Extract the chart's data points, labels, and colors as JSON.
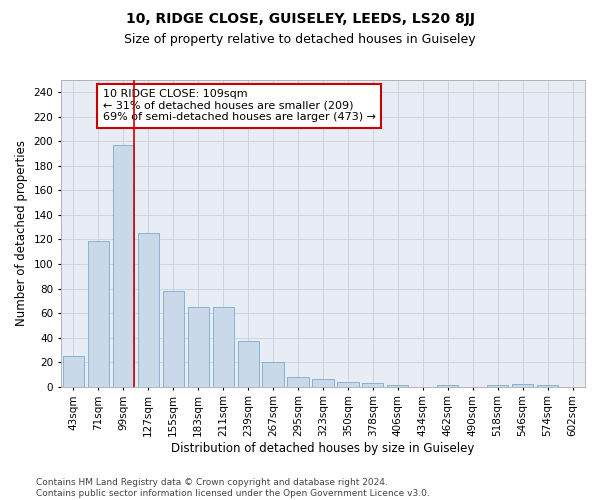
{
  "title": "10, RIDGE CLOSE, GUISELEY, LEEDS, LS20 8JJ",
  "subtitle": "Size of property relative to detached houses in Guiseley",
  "xlabel": "Distribution of detached houses by size in Guiseley",
  "ylabel": "Number of detached properties",
  "bins": [
    "43sqm",
    "71sqm",
    "99sqm",
    "127sqm",
    "155sqm",
    "183sqm",
    "211sqm",
    "239sqm",
    "267sqm",
    "295sqm",
    "323sqm",
    "350sqm",
    "378sqm",
    "406sqm",
    "434sqm",
    "462sqm",
    "490sqm",
    "518sqm",
    "546sqm",
    "574sqm",
    "602sqm"
  ],
  "values": [
    25,
    119,
    197,
    125,
    78,
    65,
    65,
    37,
    20,
    8,
    6,
    4,
    3,
    1,
    0,
    1,
    0,
    1,
    2,
    1,
    0
  ],
  "bar_color": "#c9d9ea",
  "bar_edge_color": "#7aaac8",
  "highlight_bar_index": 2,
  "highlight_color": "#cc0000",
  "annotation_text": "10 RIDGE CLOSE: 109sqm\n← 31% of detached houses are smaller (209)\n69% of semi-detached houses are larger (473) →",
  "annotation_box_color": "white",
  "annotation_box_edge": "#cc0000",
  "ylim": [
    0,
    250
  ],
  "yticks": [
    0,
    20,
    40,
    60,
    80,
    100,
    120,
    140,
    160,
    180,
    200,
    220,
    240
  ],
  "grid_color": "#c8d0dc",
  "background_color": "#e8edf5",
  "footer_text": "Contains HM Land Registry data © Crown copyright and database right 2024.\nContains public sector information licensed under the Open Government Licence v3.0.",
  "title_fontsize": 10,
  "subtitle_fontsize": 9,
  "axis_label_fontsize": 8.5,
  "tick_fontsize": 7.5,
  "annotation_fontsize": 8,
  "footer_fontsize": 6.5
}
